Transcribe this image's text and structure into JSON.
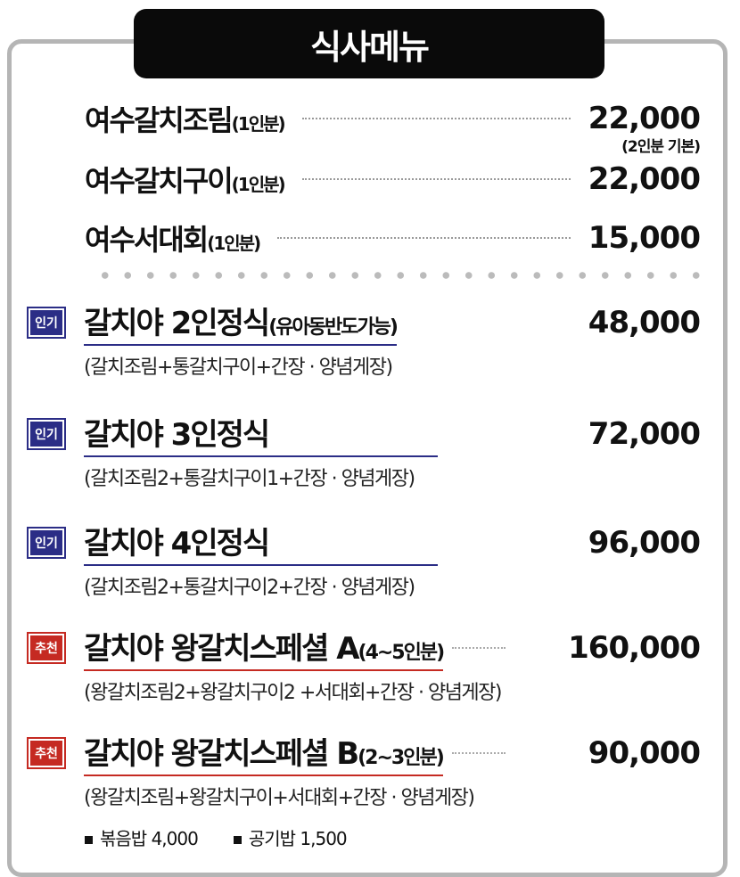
{
  "header": {
    "title": "식사메뉴"
  },
  "simple_items": [
    {
      "name": "여수갈치조림",
      "portion": "(1인분)",
      "price": "22,000",
      "note": "(2인분 기본)"
    },
    {
      "name": "여수갈치구이",
      "portion": "(1인분)",
      "price": "22,000"
    },
    {
      "name": "여수서대회",
      "portion": "(1인분)",
      "price": "15,000"
    }
  ],
  "sets": [
    {
      "badge": "인기",
      "name": "갈치야 2인정식",
      "extra": "(유아동반도가능)",
      "price": "48,000",
      "desc": "(갈치조림+통갈치구이+간장 · 양념게장)"
    },
    {
      "badge": "인기",
      "name": "갈치야 3인정식",
      "extra": "",
      "price": "72,000",
      "desc": "(갈치조림2+통갈치구이1+간장 · 양념게장)"
    },
    {
      "badge": "인기",
      "name": "갈치야 4인정식",
      "extra": "",
      "price": "96,000",
      "desc": "(갈치조림2+통갈치구이2+간장 · 양념게장)"
    },
    {
      "badge": "추천",
      "name": "갈치야 왕갈치스페셜 A",
      "extra": "(4~5인분)",
      "price": "160,000",
      "desc": "(왕갈치조림2+왕갈치구이2 +서대회+간장 · 양념게장)"
    },
    {
      "badge": "추천",
      "name": "갈치야 왕갈치스페셜 B",
      "extra": "(2~3인분)",
      "price": "90,000",
      "desc": "(왕갈치조림+왕갈치구이+서대회+간장 · 양념게장)"
    }
  ],
  "extras": [
    {
      "name": "볶음밥",
      "price": "4,000"
    },
    {
      "name": "공기밥",
      "price": "1,500"
    }
  ],
  "colors": {
    "popular": "#2b2d86",
    "recommended": "#c52a22",
    "frame": "#b5b5b5"
  }
}
